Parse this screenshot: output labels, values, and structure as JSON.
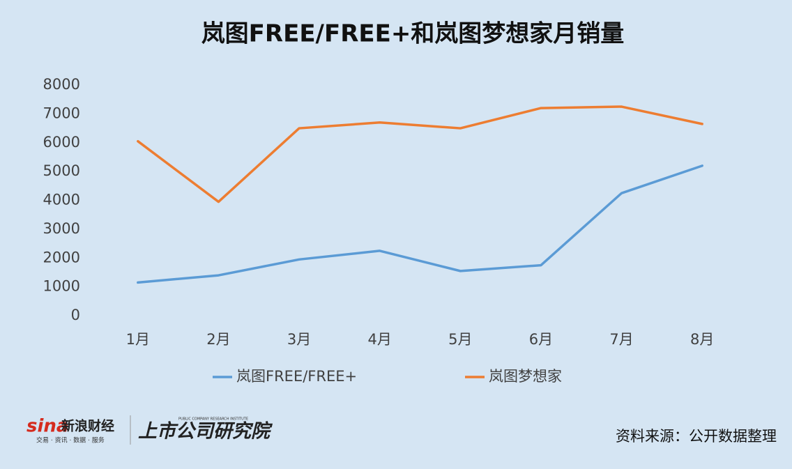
{
  "chart_data": {
    "type": "line",
    "title": "岚图FREE/FREE+和岚图梦想家月销量",
    "categories": [
      "1月",
      "2月",
      "3月",
      "4月",
      "5月",
      "6月",
      "7月",
      "8月"
    ],
    "series": [
      {
        "name": "岚图FREE/FREE+",
        "color": "#5b9bd5",
        "values": [
          1150,
          1400,
          1950,
          2250,
          1550,
          1750,
          4250,
          5200
        ]
      },
      {
        "name": "岚图梦想家",
        "color": "#ed7d31",
        "values": [
          6050,
          3950,
          6500,
          6700,
          6500,
          7200,
          7250,
          6650
        ]
      }
    ],
    "ylim": [
      0,
      8000
    ],
    "yticks": [
      0,
      1000,
      2000,
      3000,
      4000,
      5000,
      6000,
      7000,
      8000
    ],
    "grid": false
  },
  "footer": {
    "source": "资料来源：公开数据整理",
    "logo_sina": "sina",
    "logo_sina_name": "新浪财经",
    "logo_sina_tagline": "交易 · 资讯 · 数据 · 服务",
    "logo_institute": "上市公司研究院",
    "logo_institute_en": "PUBLIC COMPANY RESEARCH INSTITUTE"
  }
}
